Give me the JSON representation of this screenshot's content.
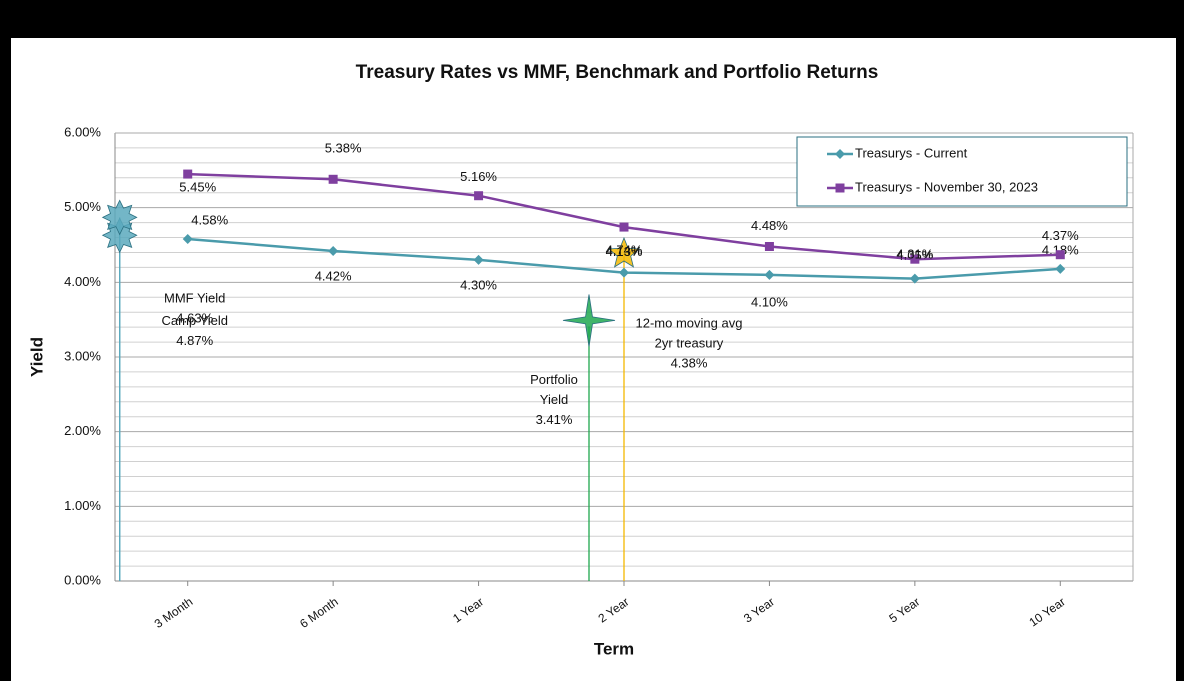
{
  "chart_data": {
    "type": "line",
    "title": "Treasury Rates vs MMF, Benchmark and Portfolio Returns",
    "xlabel": "Term",
    "ylabel": "Yield",
    "categories": [
      "3 Month",
      "6 Month",
      "1 Year",
      "2 Year",
      "3 Year",
      "5 Year",
      "10 Year"
    ],
    "series": [
      {
        "name": "Treasurys - Current",
        "color": "#4a9bab",
        "marker": "diamond",
        "values": [
          4.58,
          4.42,
          4.3,
          4.13,
          4.1,
          4.05,
          4.18
        ],
        "value_labels": [
          "4.58%",
          "4.42%",
          "4.30%",
          "4.13%",
          "4.10%",
          "4.05%",
          "4.18%"
        ]
      },
      {
        "name": "Treasurys - November 30, 2023",
        "color": "#7f3f9f",
        "marker": "square",
        "values": [
          5.45,
          5.38,
          5.16,
          4.74,
          4.48,
          4.31,
          4.37
        ],
        "value_labels": [
          "5.45%",
          "5.38%",
          "5.16%",
          "4.74%",
          "4.48%",
          "4.31%",
          "4.37%"
        ]
      }
    ],
    "markers": [
      {
        "name": [
          "MMF Yield"
        ],
        "value": 4.63,
        "value_label": "4.63%",
        "category": 0,
        "color": "#5aa9bd",
        "shape": "star8"
      },
      {
        "name": [
          "Camp Yield"
        ],
        "value": 4.87,
        "value_label": "4.87%",
        "category": 0,
        "color": "#5aa9bd",
        "shape": "star8"
      },
      {
        "name": [
          "Portfolio",
          "Yield"
        ],
        "value": 3.41,
        "value_label": "3.41%",
        "category": 3,
        "color": "#1fa84f",
        "shape": "star4"
      },
      {
        "name": [
          "12-mo moving avg",
          "2yr treasury"
        ],
        "value": 4.38,
        "value_label": "4.38%",
        "category": 3,
        "color": "#f5b800",
        "shape": "star5"
      }
    ],
    "ylim": [
      0,
      6
    ],
    "yticks": [
      {
        "value": 0,
        "label": "0.00%"
      },
      {
        "value": 1,
        "label": "1.00%"
      },
      {
        "value": 2,
        "label": "2.00%"
      },
      {
        "value": 3,
        "label": "3.00%"
      },
      {
        "value": 4,
        "label": "4.00%"
      },
      {
        "value": 5,
        "label": "5.00%"
      },
      {
        "value": 6,
        "label": "6.00%"
      }
    ],
    "minor_yticks": [
      0.2,
      0.4,
      0.6,
      0.8,
      1.2,
      1.4,
      1.6,
      1.8,
      2.2,
      2.4,
      2.6,
      2.8,
      3.2,
      3.4,
      3.6,
      3.8,
      4.2,
      4.4,
      4.6,
      4.8,
      5.2,
      5.4,
      5.6,
      5.8
    ],
    "grid": true,
    "legend": "upper right"
  }
}
